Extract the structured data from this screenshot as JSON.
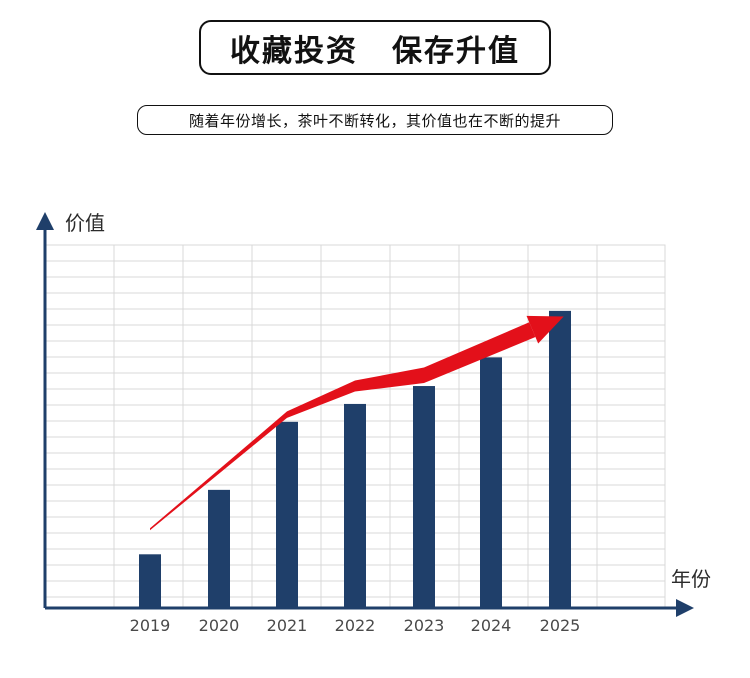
{
  "header": {
    "title_left": "收藏投资",
    "title_right": "保存升值",
    "subtitle": "随着年份增长，茶叶不断转化，其价值也在不断的提升"
  },
  "colors": {
    "bar": "#1f3f6a",
    "axis": "#1f3f6a",
    "arrow": "#e3101a",
    "grid": "#d9d9d9"
  },
  "chart_data": {
    "type": "bar",
    "title": "",
    "xlabel": "年份",
    "ylabel": "价值",
    "categories": [
      "2019",
      "2020",
      "2021",
      "2022",
      "2023",
      "2024",
      "2025"
    ],
    "values": [
      1.5,
      3.3,
      5.2,
      5.7,
      6.2,
      7.0,
      8.3
    ],
    "ylim": [
      0,
      10
    ],
    "grid": true,
    "trend_arrow": {
      "color": "#e3101a",
      "values": [
        2.2,
        5.4,
        6.2,
        6.5,
        8.1
      ],
      "x_positions": [
        "2019",
        "2021",
        "2022",
        "2023",
        "2025"
      ]
    }
  }
}
